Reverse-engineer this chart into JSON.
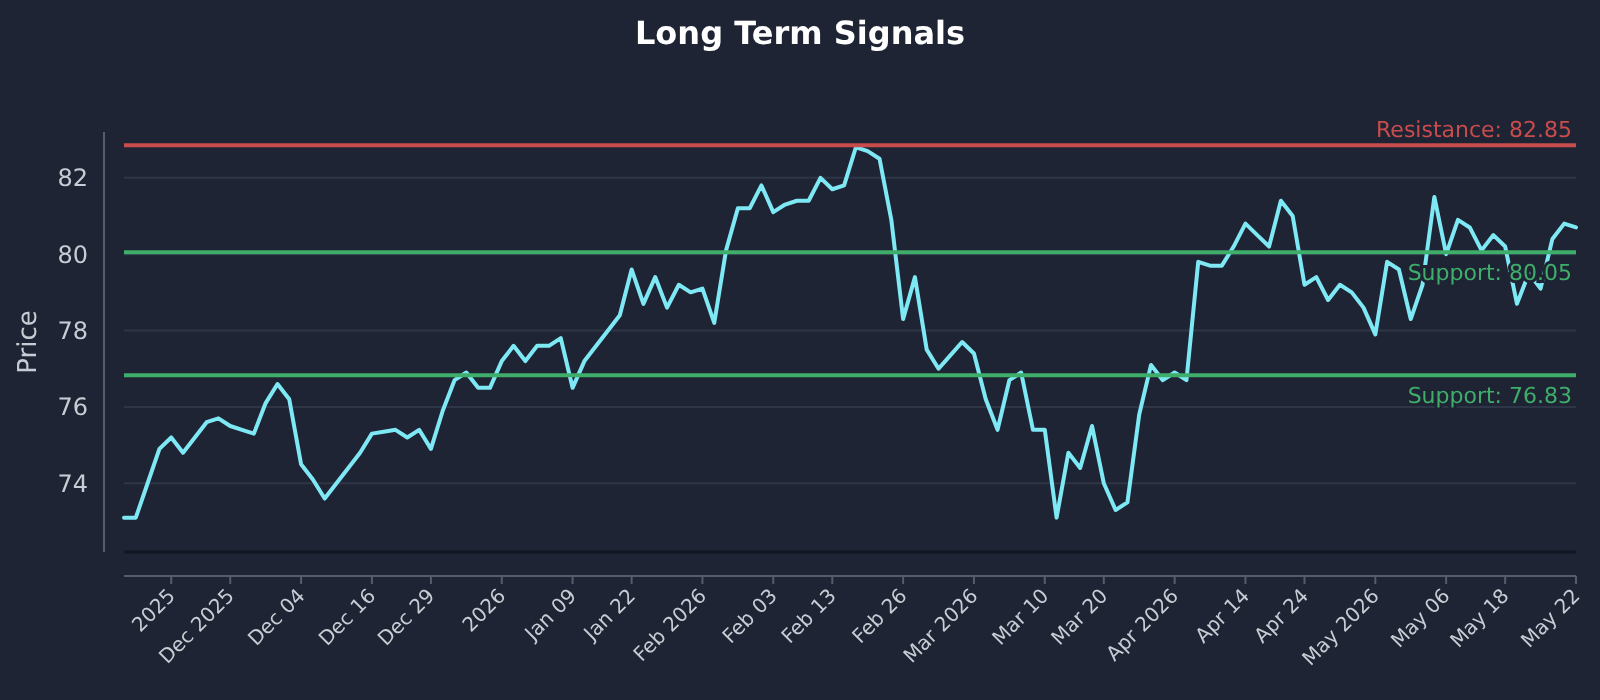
{
  "chart_data": {
    "type": "line",
    "title": "Long Term Signals",
    "ylabel": "Price",
    "categories": [
      null,
      null,
      null,
      null,
      "2025",
      null,
      null,
      null,
      null,
      "Dec 2025",
      null,
      null,
      null,
      null,
      null,
      "Dec 04",
      null,
      null,
      null,
      null,
      null,
      "Dec 16",
      null,
      null,
      null,
      null,
      "Dec 29",
      null,
      null,
      null,
      null,
      null,
      "2026",
      null,
      null,
      null,
      null,
      null,
      "Jan 09",
      null,
      null,
      null,
      null,
      "Jan 22",
      null,
      null,
      null,
      null,
      null,
      "Feb 2026",
      null,
      null,
      null,
      null,
      null,
      "Feb 03",
      null,
      null,
      null,
      null,
      "Feb 13",
      null,
      null,
      null,
      null,
      null,
      "Feb 26",
      null,
      null,
      null,
      null,
      null,
      "Mar 2026",
      null,
      null,
      null,
      null,
      null,
      "Mar 10",
      null,
      null,
      null,
      null,
      "Mar 20",
      null,
      null,
      null,
      null,
      null,
      "Apr 2026",
      null,
      null,
      null,
      null,
      null,
      "Apr 14",
      null,
      null,
      null,
      null,
      "Apr 24",
      null,
      null,
      null,
      null,
      null,
      "May 2026",
      null,
      null,
      null,
      null,
      null,
      "May 06",
      null,
      null,
      null,
      null,
      "May 18",
      null,
      null,
      null,
      null,
      null,
      "May 22"
    ],
    "series": [
      {
        "color": "#7ee8f5",
        "values": [
          73.1,
          73.1,
          74.0,
          74.9,
          75.2,
          74.8,
          75.2,
          75.6,
          75.7,
          75.5,
          75.4,
          75.3,
          76.1,
          76.6,
          76.2,
          74.5,
          74.1,
          73.6,
          74.0,
          74.4,
          74.8,
          75.3,
          75.35,
          75.4,
          75.2,
          75.4,
          74.9,
          75.9,
          76.7,
          76.9,
          76.5,
          76.5,
          77.2,
          77.6,
          77.2,
          77.6,
          77.6,
          77.8,
          76.5,
          77.2,
          77.6,
          78.0,
          78.4,
          79.6,
          78.7,
          79.4,
          78.6,
          79.2,
          79.0,
          79.1,
          78.2,
          80.1,
          81.2,
          81.2,
          81.8,
          81.1,
          81.3,
          81.4,
          81.4,
          82.0,
          81.7,
          81.8,
          82.8,
          82.7,
          82.5,
          80.9,
          78.3,
          79.4,
          77.5,
          77.0,
          77.35,
          77.7,
          77.4,
          76.2,
          75.4,
          76.7,
          76.9,
          75.4,
          75.4,
          73.1,
          74.8,
          74.4,
          75.5,
          74.0,
          73.3,
          73.5,
          75.8,
          77.1,
          76.7,
          76.9,
          76.7,
          79.8,
          79.7,
          79.7,
          80.2,
          80.8,
          80.5,
          80.2,
          81.4,
          81.0,
          79.2,
          79.4,
          78.8,
          79.2,
          79.0,
          78.6,
          77.9,
          79.8,
          79.6,
          78.3,
          79.2,
          81.5,
          80.0,
          80.9,
          80.7,
          80.1,
          80.5,
          80.2,
          78.7,
          79.5,
          79.1,
          80.4,
          80.8,
          80.7
        ]
      }
    ],
    "ylim": [
      72.2,
      83.2
    ],
    "yticks": [
      74,
      76,
      78,
      80,
      82
    ],
    "grid": "y",
    "ref_lines": [
      {
        "axis": "y",
        "value": 82.85,
        "label": "Resistance: 82.85",
        "color": "#c94c4c"
      },
      {
        "axis": "y",
        "value": 80.05,
        "label": "Support: 80.05",
        "color": "#3fae6a"
      },
      {
        "axis": "y",
        "value": 76.83,
        "label": "Support: 76.83",
        "color": "#3fae6a"
      }
    ]
  }
}
